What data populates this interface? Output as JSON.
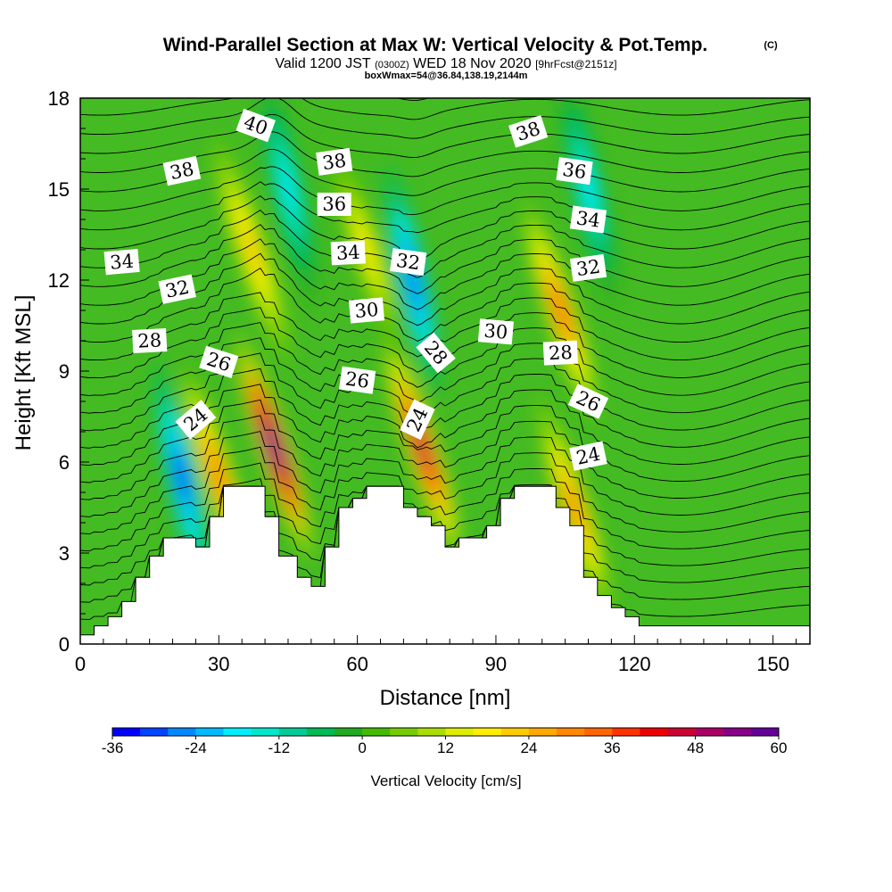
{
  "title": "Wind-Parallel Section at Max W: Vertical Velocity & Pot.Temp.",
  "title_mark": "(C)",
  "subtitle": {
    "valid": "Valid 1200 JST",
    "utc": "(0300Z)",
    "date": "WED 18 Nov 2020",
    "fcst": "[9hrFcst@2151z]",
    "box": "boxWmax=54@36.84,138.19,2144m"
  },
  "chart_data": {
    "type": "heatmap",
    "xlabel": "Distance [nm]",
    "ylabel": "Height [Kft MSL]",
    "xlim": [
      0,
      158
    ],
    "ylim": [
      0,
      18
    ],
    "x_ticks": [
      "0",
      "30",
      "60",
      "90",
      "120",
      "150"
    ],
    "y_ticks": [
      "0",
      "3",
      "6",
      "9",
      "12",
      "15",
      "18"
    ],
    "colorbar": {
      "label": "Vertical Velocity [cm/s]",
      "min": -36,
      "max": 60,
      "step": 4,
      "tick_labels": [
        "-36",
        "-24",
        "-12",
        "0",
        "12",
        "24",
        "36",
        "48",
        "60"
      ],
      "colors": [
        "#0000ff",
        "#0044ff",
        "#0088ff",
        "#00bbff",
        "#00eeff",
        "#00e8cc",
        "#00cc99",
        "#00bb55",
        "#22aa22",
        "#44bb00",
        "#77cc00",
        "#aadd00",
        "#ddee00",
        "#ffee00",
        "#ffcc00",
        "#ffaa00",
        "#ff8800",
        "#ff6600",
        "#ff3300",
        "#ee0000",
        "#cc0033",
        "#aa0066",
        "#880088",
        "#660099"
      ]
    },
    "w_features": [
      {
        "x": 22,
        "z": 5.5,
        "w": -30
      },
      {
        "x": 30,
        "z": 5.5,
        "w": 30
      },
      {
        "x": 42,
        "z": 6.5,
        "w": 55
      },
      {
        "x": 37,
        "z": 13,
        "w": 20
      },
      {
        "x": 45,
        "z": 15,
        "w": -18
      },
      {
        "x": 72,
        "z": 12,
        "w": -28
      },
      {
        "x": 74,
        "z": 6.5,
        "w": 45
      },
      {
        "x": 62,
        "z": 13,
        "w": 16
      },
      {
        "x": 104,
        "z": 11,
        "w": 32
      },
      {
        "x": 110,
        "z": 15,
        "w": -18
      },
      {
        "x": 107,
        "z": 4.5,
        "w": 28
      }
    ],
    "terrain_height_kft": [
      [
        0,
        0.3
      ],
      [
        3,
        0.6
      ],
      [
        6,
        0.9
      ],
      [
        9,
        1.4
      ],
      [
        12,
        2.2
      ],
      [
        15,
        2.9
      ],
      [
        18,
        3.5
      ],
      [
        22,
        3.5
      ],
      [
        25,
        3.2
      ],
      [
        28,
        4.2
      ],
      [
        31,
        5.2
      ],
      [
        37,
        5.2
      ],
      [
        40,
        4.2
      ],
      [
        43,
        2.9
      ],
      [
        47,
        2.2
      ],
      [
        50,
        1.9
      ],
      [
        53,
        3.2
      ],
      [
        56,
        4.5
      ],
      [
        59,
        4.8
      ],
      [
        62,
        5.2
      ],
      [
        67,
        5.2
      ],
      [
        70,
        4.5
      ],
      [
        73,
        4.2
      ],
      [
        76,
        3.9
      ],
      [
        79,
        3.2
      ],
      [
        82,
        3.5
      ],
      [
        85,
        3.5
      ],
      [
        88,
        3.9
      ],
      [
        91,
        4.8
      ],
      [
        94,
        5.2
      ],
      [
        100,
        5.2
      ],
      [
        103,
        4.5
      ],
      [
        106,
        3.9
      ],
      [
        109,
        2.2
      ],
      [
        112,
        1.6
      ],
      [
        115,
        1.2
      ],
      [
        118,
        0.9
      ],
      [
        121,
        0.6
      ],
      [
        158,
        0.6
      ]
    ],
    "theta_contour_labels": [
      {
        "label": "40",
        "x": 38,
        "z": 17.1,
        "rot": 20
      },
      {
        "label": "38",
        "x": 22,
        "z": 15.6,
        "rot": -12
      },
      {
        "label": "38",
        "x": 55,
        "z": 15.9,
        "rot": -8
      },
      {
        "label": "38",
        "x": 97,
        "z": 16.9,
        "rot": -18
      },
      {
        "label": "36",
        "x": 55,
        "z": 14.5,
        "rot": 0
      },
      {
        "label": "36",
        "x": 107,
        "z": 15.6,
        "rot": 8
      },
      {
        "label": "34",
        "x": 9,
        "z": 12.6,
        "rot": -5
      },
      {
        "label": "34",
        "x": 58,
        "z": 12.9,
        "rot": -3
      },
      {
        "label": "34",
        "x": 110,
        "z": 14.0,
        "rot": 8
      },
      {
        "label": "32",
        "x": 21,
        "z": 11.7,
        "rot": -12
      },
      {
        "label": "32",
        "x": 71,
        "z": 12.6,
        "rot": 8
      },
      {
        "label": "32",
        "x": 110,
        "z": 12.4,
        "rot": -8
      },
      {
        "label": "30",
        "x": 62,
        "z": 11.0,
        "rot": -5
      },
      {
        "label": "30",
        "x": 90,
        "z": 10.3,
        "rot": 5
      },
      {
        "label": "28",
        "x": 15,
        "z": 10.0,
        "rot": -3
      },
      {
        "label": "28",
        "x": 77,
        "z": 9.6,
        "rot": 50
      },
      {
        "label": "28",
        "x": 104,
        "z": 9.6,
        "rot": -3
      },
      {
        "label": "26",
        "x": 30,
        "z": 9.3,
        "rot": 18
      },
      {
        "label": "26",
        "x": 60,
        "z": 8.7,
        "rot": 8
      },
      {
        "label": "26",
        "x": 110,
        "z": 8.0,
        "rot": 25
      },
      {
        "label": "24",
        "x": 25,
        "z": 7.4,
        "rot": -40
      },
      {
        "label": "24",
        "x": 73,
        "z": 7.4,
        "rot": -65
      },
      {
        "label": "24",
        "x": 110,
        "z": 6.2,
        "rot": -12
      }
    ]
  }
}
